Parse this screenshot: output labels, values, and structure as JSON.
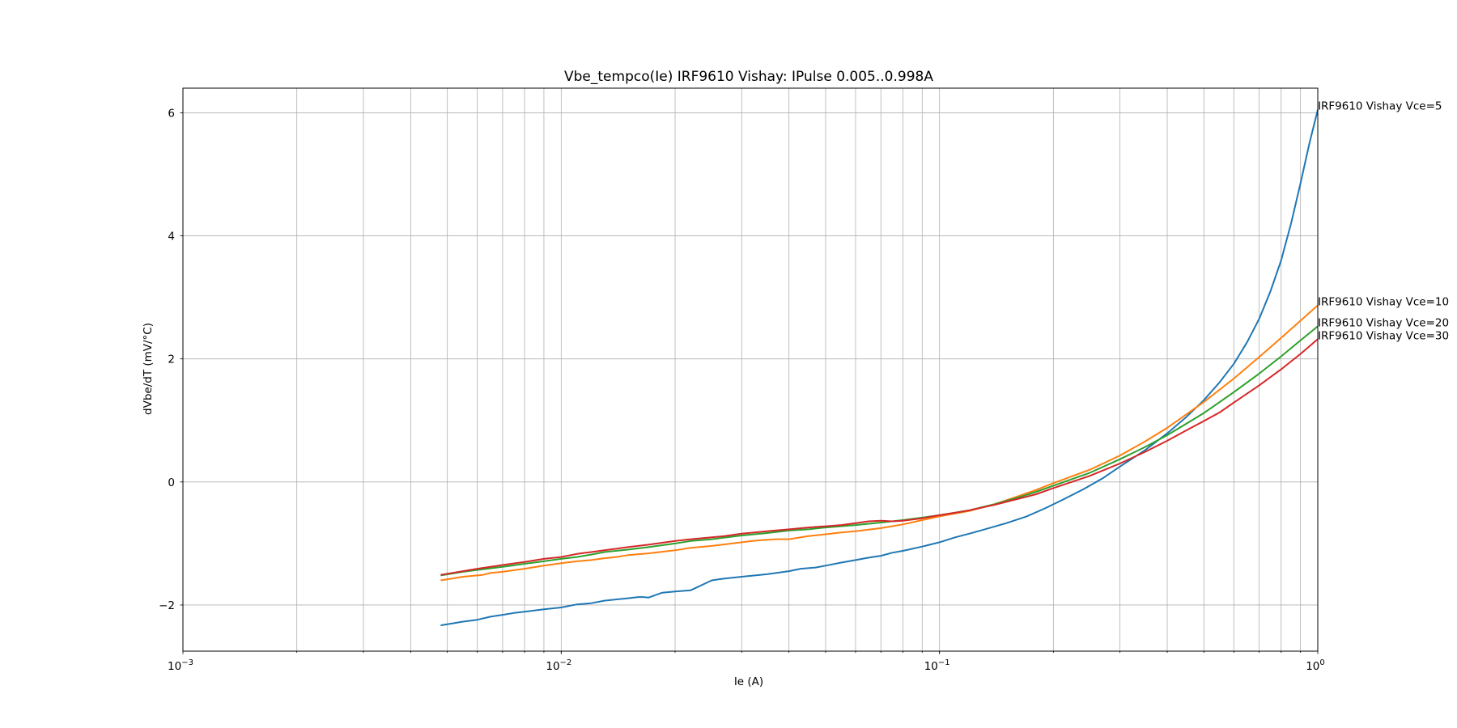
{
  "chart_data": {
    "type": "line",
    "title": "Vbe_tempco(Ie) IRF9610 Vishay: IPulse 0.005..0.998A",
    "xlabel": "Ie (A)",
    "ylabel": "dVbe/dT (mV/°C)",
    "x_scale": "log",
    "xlim": [
      0.001,
      1.0
    ],
    "ylim": [
      -2.75,
      6.4
    ],
    "x_ticks": [
      {
        "value": 0.001,
        "base": "10",
        "exp": "−3"
      },
      {
        "value": 0.01,
        "base": "10",
        "exp": "−2"
      },
      {
        "value": 0.1,
        "base": "10",
        "exp": "−1"
      },
      {
        "value": 1.0,
        "base": "10",
        "exp": "0"
      }
    ],
    "y_ticks": [
      {
        "value": -2,
        "label": "−2"
      },
      {
        "value": 0,
        "label": "0"
      },
      {
        "value": 2,
        "label": "2"
      },
      {
        "value": 4,
        "label": "4"
      },
      {
        "value": 6,
        "label": "6"
      }
    ],
    "grid": true,
    "x_minor_grid": true,
    "series": [
      {
        "name": "IRF9610 Vishay Vce=5",
        "color": "#1f77b4",
        "points": [
          [
            0.0048,
            -2.33
          ],
          [
            0.0055,
            -2.27
          ],
          [
            0.006,
            -2.24
          ],
          [
            0.0065,
            -2.19
          ],
          [
            0.007,
            -2.16
          ],
          [
            0.0075,
            -2.13
          ],
          [
            0.008,
            -2.11
          ],
          [
            0.009,
            -2.07
          ],
          [
            0.01,
            -2.04
          ],
          [
            0.011,
            -1.99
          ],
          [
            0.012,
            -1.97
          ],
          [
            0.013,
            -1.93
          ],
          [
            0.015,
            -1.89
          ],
          [
            0.016,
            -1.87
          ],
          [
            0.0165,
            -1.87
          ],
          [
            0.017,
            -1.88
          ],
          [
            0.0185,
            -1.8
          ],
          [
            0.02,
            -1.78
          ],
          [
            0.022,
            -1.76
          ],
          [
            0.025,
            -1.6
          ],
          [
            0.027,
            -1.57
          ],
          [
            0.03,
            -1.54
          ],
          [
            0.035,
            -1.5
          ],
          [
            0.04,
            -1.45
          ],
          [
            0.043,
            -1.41
          ],
          [
            0.047,
            -1.39
          ],
          [
            0.05,
            -1.36
          ],
          [
            0.055,
            -1.31
          ],
          [
            0.06,
            -1.27
          ],
          [
            0.065,
            -1.23
          ],
          [
            0.07,
            -1.2
          ],
          [
            0.075,
            -1.15
          ],
          [
            0.08,
            -1.12
          ],
          [
            0.09,
            -1.05
          ],
          [
            0.1,
            -0.98
          ],
          [
            0.11,
            -0.9
          ],
          [
            0.12,
            -0.84
          ],
          [
            0.13,
            -0.78
          ],
          [
            0.15,
            -0.67
          ],
          [
            0.17,
            -0.56
          ],
          [
            0.19,
            -0.43
          ],
          [
            0.21,
            -0.3
          ],
          [
            0.24,
            -0.12
          ],
          [
            0.27,
            0.06
          ],
          [
            0.3,
            0.25
          ],
          [
            0.35,
            0.52
          ],
          [
            0.4,
            0.79
          ],
          [
            0.45,
            1.06
          ],
          [
            0.5,
            1.33
          ],
          [
            0.55,
            1.62
          ],
          [
            0.6,
            1.92
          ],
          [
            0.65,
            2.27
          ],
          [
            0.7,
            2.65
          ],
          [
            0.75,
            3.1
          ],
          [
            0.8,
            3.6
          ],
          [
            0.85,
            4.2
          ],
          [
            0.9,
            4.85
          ],
          [
            0.95,
            5.5
          ],
          [
            1.0,
            6.05
          ]
        ]
      },
      {
        "name": "IRF9610 Vishay Vce=10",
        "color": "#ff7f0e",
        "points": [
          [
            0.0048,
            -1.6
          ],
          [
            0.0055,
            -1.54
          ],
          [
            0.0062,
            -1.51
          ],
          [
            0.0065,
            -1.48
          ],
          [
            0.007,
            -1.46
          ],
          [
            0.008,
            -1.41
          ],
          [
            0.009,
            -1.36
          ],
          [
            0.01,
            -1.32
          ],
          [
            0.011,
            -1.29
          ],
          [
            0.012,
            -1.27
          ],
          [
            0.013,
            -1.24
          ],
          [
            0.014,
            -1.22
          ],
          [
            0.015,
            -1.19
          ],
          [
            0.017,
            -1.16
          ],
          [
            0.02,
            -1.11
          ],
          [
            0.022,
            -1.07
          ],
          [
            0.025,
            -1.04
          ],
          [
            0.03,
            -0.98
          ],
          [
            0.033,
            -0.95
          ],
          [
            0.037,
            -0.93
          ],
          [
            0.04,
            -0.93
          ],
          [
            0.045,
            -0.88
          ],
          [
            0.05,
            -0.85
          ],
          [
            0.055,
            -0.82
          ],
          [
            0.06,
            -0.8
          ],
          [
            0.07,
            -0.75
          ],
          [
            0.08,
            -0.69
          ],
          [
            0.09,
            -0.62
          ],
          [
            0.1,
            -0.56
          ],
          [
            0.12,
            -0.47
          ],
          [
            0.14,
            -0.36
          ],
          [
            0.16,
            -0.24
          ],
          [
            0.18,
            -0.13
          ],
          [
            0.2,
            -0.02
          ],
          [
            0.25,
            0.2
          ],
          [
            0.3,
            0.43
          ],
          [
            0.35,
            0.66
          ],
          [
            0.4,
            0.88
          ],
          [
            0.45,
            1.1
          ],
          [
            0.5,
            1.3
          ],
          [
            0.6,
            1.68
          ],
          [
            0.7,
            2.03
          ],
          [
            0.8,
            2.34
          ],
          [
            0.9,
            2.62
          ],
          [
            1.0,
            2.87
          ]
        ]
      },
      {
        "name": "IRF9610 Vishay Vce=20",
        "color": "#2ca02c",
        "points": [
          [
            0.0048,
            -1.52
          ],
          [
            0.0055,
            -1.46
          ],
          [
            0.006,
            -1.43
          ],
          [
            0.007,
            -1.38
          ],
          [
            0.008,
            -1.33
          ],
          [
            0.009,
            -1.29
          ],
          [
            0.01,
            -1.25
          ],
          [
            0.011,
            -1.22
          ],
          [
            0.012,
            -1.18
          ],
          [
            0.013,
            -1.14
          ],
          [
            0.015,
            -1.1
          ],
          [
            0.017,
            -1.06
          ],
          [
            0.02,
            -1.0
          ],
          [
            0.022,
            -0.96
          ],
          [
            0.025,
            -0.93
          ],
          [
            0.03,
            -0.87
          ],
          [
            0.035,
            -0.83
          ],
          [
            0.04,
            -0.79
          ],
          [
            0.045,
            -0.77
          ],
          [
            0.05,
            -0.74
          ],
          [
            0.06,
            -0.7
          ],
          [
            0.07,
            -0.66
          ],
          [
            0.08,
            -0.62
          ],
          [
            0.09,
            -0.58
          ],
          [
            0.1,
            -0.54
          ],
          [
            0.12,
            -0.46
          ],
          [
            0.14,
            -0.36
          ],
          [
            0.16,
            -0.26
          ],
          [
            0.18,
            -0.16
          ],
          [
            0.2,
            -0.06
          ],
          [
            0.25,
            0.15
          ],
          [
            0.3,
            0.37
          ],
          [
            0.35,
            0.57
          ],
          [
            0.4,
            0.76
          ],
          [
            0.45,
            0.95
          ],
          [
            0.5,
            1.12
          ],
          [
            0.6,
            1.46
          ],
          [
            0.7,
            1.76
          ],
          [
            0.8,
            2.04
          ],
          [
            0.9,
            2.3
          ],
          [
            1.0,
            2.53
          ]
        ]
      },
      {
        "name": "IRF9610 Vishay Vce=30",
        "color": "#d62728",
        "points": [
          [
            0.0048,
            -1.51
          ],
          [
            0.0055,
            -1.45
          ],
          [
            0.006,
            -1.41
          ],
          [
            0.0065,
            -1.38
          ],
          [
            0.007,
            -1.35
          ],
          [
            0.008,
            -1.3
          ],
          [
            0.009,
            -1.25
          ],
          [
            0.01,
            -1.22
          ],
          [
            0.011,
            -1.17
          ],
          [
            0.012,
            -1.14
          ],
          [
            0.013,
            -1.11
          ],
          [
            0.015,
            -1.06
          ],
          [
            0.017,
            -1.02
          ],
          [
            0.02,
            -0.96
          ],
          [
            0.022,
            -0.93
          ],
          [
            0.025,
            -0.9
          ],
          [
            0.027,
            -0.88
          ],
          [
            0.03,
            -0.84
          ],
          [
            0.035,
            -0.8
          ],
          [
            0.04,
            -0.77
          ],
          [
            0.045,
            -0.74
          ],
          [
            0.05,
            -0.72
          ],
          [
            0.055,
            -0.7
          ],
          [
            0.06,
            -0.67
          ],
          [
            0.065,
            -0.64
          ],
          [
            0.07,
            -0.63
          ],
          [
            0.075,
            -0.64
          ],
          [
            0.08,
            -0.63
          ],
          [
            0.09,
            -0.59
          ],
          [
            0.1,
            -0.54
          ],
          [
            0.11,
            -0.5
          ],
          [
            0.12,
            -0.46
          ],
          [
            0.14,
            -0.37
          ],
          [
            0.16,
            -0.28
          ],
          [
            0.18,
            -0.2
          ],
          [
            0.2,
            -0.1
          ],
          [
            0.25,
            0.1
          ],
          [
            0.3,
            0.3
          ],
          [
            0.35,
            0.49
          ],
          [
            0.4,
            0.67
          ],
          [
            0.45,
            0.84
          ],
          [
            0.5,
            0.99
          ],
          [
            0.55,
            1.13
          ],
          [
            0.6,
            1.29
          ],
          [
            0.7,
            1.57
          ],
          [
            0.8,
            1.83
          ],
          [
            0.9,
            2.08
          ],
          [
            1.0,
            2.32
          ]
        ]
      }
    ]
  }
}
